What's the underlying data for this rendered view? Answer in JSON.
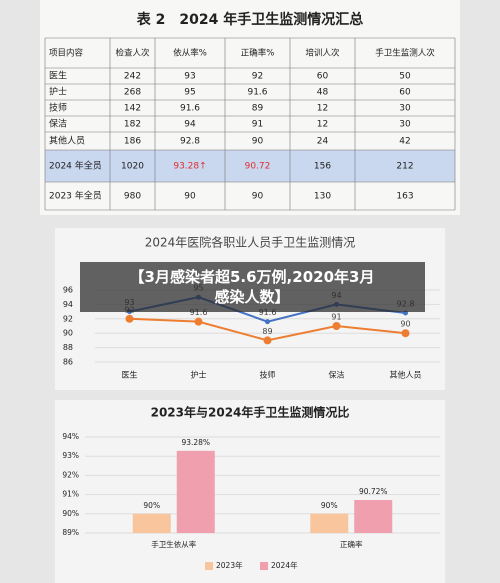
{
  "table": {
    "title": "表 2　2024 年手卫生监测情况汇总",
    "header": [
      "项目内容",
      "检查人次",
      "依从率%",
      "正确率%",
      "培训人次",
      "手卫生监测人次"
    ],
    "rows": [
      [
        "医生",
        242,
        93,
        92,
        60,
        50
      ],
      [
        "护士",
        268,
        95,
        91.6,
        48,
        60
      ],
      [
        "技师",
        142,
        91.6,
        89,
        12,
        30
      ],
      [
        "保洁",
        182,
        94,
        91,
        12,
        30
      ],
      [
        "其他人员",
        186,
        92.8,
        90,
        24,
        42
      ],
      [
        "2024 年全员",
        1020,
        "93.28↑",
        90.72,
        156,
        212
      ],
      [
        "2023 年全员",
        980,
        90,
        90,
        130,
        163
      ]
    ]
  },
  "chart_data": [
    {
      "type": "line",
      "title": "2024年医院各职业人员手卫生监测情况",
      "categories": [
        "医生",
        "护士",
        "技师",
        "保洁",
        "其他人员"
      ],
      "series": [
        {
          "color": "#4472c4",
          "values": [
            93,
            95,
            91.6,
            94,
            92.8
          ]
        },
        {
          "color": "#ed7d31",
          "values": [
            92,
            91.6,
            89,
            91,
            90
          ]
        }
      ],
      "ylim": [
        86,
        96
      ],
      "yticks": [
        86,
        88,
        90,
        92,
        94,
        96
      ],
      "grid": true
    },
    {
      "type": "bar",
      "title": "2023年与2024年手卫生监测情况比",
      "categories": [
        "手卫生依从率",
        "正确率"
      ],
      "series": [
        {
          "name": "2023年",
          "color": "#f8c59c",
          "values": [
            90,
            90
          ],
          "value_labels": [
            "90%",
            "90%"
          ]
        },
        {
          "name": "2024年",
          "color": "#ef9fae",
          "values": [
            93.28,
            90.72
          ],
          "value_labels": [
            "93.28%",
            "90.72%"
          ]
        }
      ],
      "ylim": [
        89,
        94
      ],
      "yticks": [
        {
          "value": 89,
          "label": "89%"
        },
        {
          "value": 90,
          "label": "90%"
        },
        {
          "value": 91,
          "label": "91%"
        },
        {
          "value": 92,
          "label": "92%"
        },
        {
          "value": 93,
          "label": "93%"
        },
        {
          "value": 94,
          "label": "94%"
        }
      ],
      "grid": true,
      "legend": "bottom"
    }
  ],
  "caption": "【3月感染者超5.6万例,2020年3月感染人数】"
}
